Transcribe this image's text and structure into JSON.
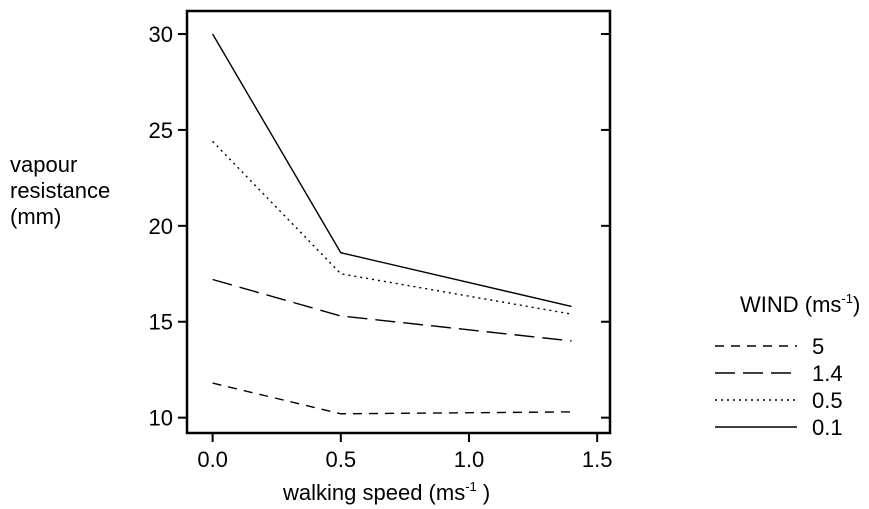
{
  "chart_data": {
    "type": "line",
    "ylabel_lines": [
      "vapour",
      "resistance",
      "(mm)"
    ],
    "xlabel": {
      "text": "walking speed (ms",
      "sup": "-1",
      "close": " )"
    },
    "x": [
      0.0,
      0.5,
      1.4
    ],
    "xlim": [
      -0.1,
      1.55
    ],
    "ylim": [
      9.2,
      31.2
    ],
    "xticks": [
      "0.0",
      "0.5",
      "1.0",
      "1.5"
    ],
    "xtick_values": [
      0.0,
      0.5,
      1.0,
      1.5
    ],
    "yticks": [
      "10",
      "15",
      "20",
      "25",
      "30"
    ],
    "ytick_values": [
      10,
      15,
      20,
      25,
      30
    ],
    "legend": {
      "title": "WIND (ms",
      "title_sup": "-1",
      "title_close": ")",
      "placement": "right"
    },
    "series": [
      {
        "name": "5",
        "style": "short-dash",
        "values": [
          11.8,
          10.2,
          10.3
        ]
      },
      {
        "name": "1.4",
        "style": "long-dash",
        "values": [
          17.2,
          15.3,
          14.0
        ]
      },
      {
        "name": "0.5",
        "style": "dotted",
        "values": [
          24.4,
          17.5,
          15.4
        ]
      },
      {
        "name": "0.1",
        "style": "solid",
        "values": [
          30.0,
          18.6,
          15.8
        ]
      }
    ]
  }
}
